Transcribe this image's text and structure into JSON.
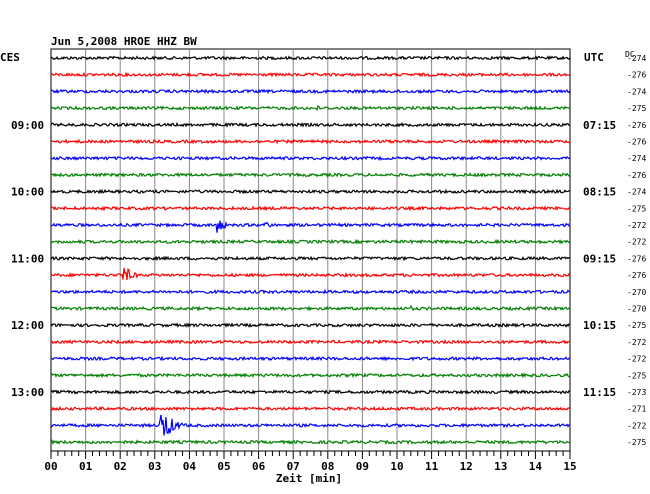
{
  "chart_data": {
    "type": "line",
    "title": "Jun 5,2008   HROE HHZ BW",
    "left_label": "CES",
    "right_label": "UTC",
    "dc_label": "DC",
    "xlabel": "Zeit [min]",
    "xlim": [
      0,
      15
    ],
    "x_ticks": [
      "00",
      "01",
      "02",
      "03",
      "04",
      "05",
      "06",
      "07",
      "08",
      "09",
      "10",
      "11",
      "12",
      "13",
      "14",
      "15"
    ],
    "left_time_labels": [
      {
        "row": 4,
        "text": "09:00"
      },
      {
        "row": 8,
        "text": "10:00"
      },
      {
        "row": 12,
        "text": "11:00"
      },
      {
        "row": 16,
        "text": "12:00"
      },
      {
        "row": 20,
        "text": "13:00"
      }
    ],
    "right_time_labels": [
      {
        "row": 4,
        "text": "07:15"
      },
      {
        "row": 8,
        "text": "08:15"
      },
      {
        "row": 12,
        "text": "09:15"
      },
      {
        "row": 16,
        "text": "10:15"
      },
      {
        "row": 20,
        "text": "11:15"
      }
    ],
    "trace_colors": [
      "#000000",
      "#ff0000",
      "#0000ff",
      "#008000"
    ],
    "dc_offsets": [
      -274,
      -276,
      -274,
      -275,
      -276,
      -276,
      -274,
      -276,
      -274,
      -275,
      -272,
      -272,
      -276,
      -276,
      -270,
      -270,
      -275,
      -272,
      -272,
      -275,
      -273,
      -271,
      -272,
      -275
    ],
    "events": [
      {
        "row": 10,
        "minute": 4.8,
        "amplitude": 9,
        "duration": 0.55
      },
      {
        "row": 10,
        "minute": 6.2,
        "amplitude": 5,
        "duration": 0.4
      },
      {
        "row": 13,
        "minute": 2.1,
        "amplitude": 10,
        "duration": 0.7
      },
      {
        "row": 22,
        "minute": 3.2,
        "amplitude": 20,
        "duration": 0.8
      },
      {
        "row": 15,
        "minute": 10.4,
        "amplitude": 3,
        "duration": 0.3
      },
      {
        "row": 3,
        "minute": 7.7,
        "amplitude": 3,
        "duration": 0.25
      }
    ]
  }
}
